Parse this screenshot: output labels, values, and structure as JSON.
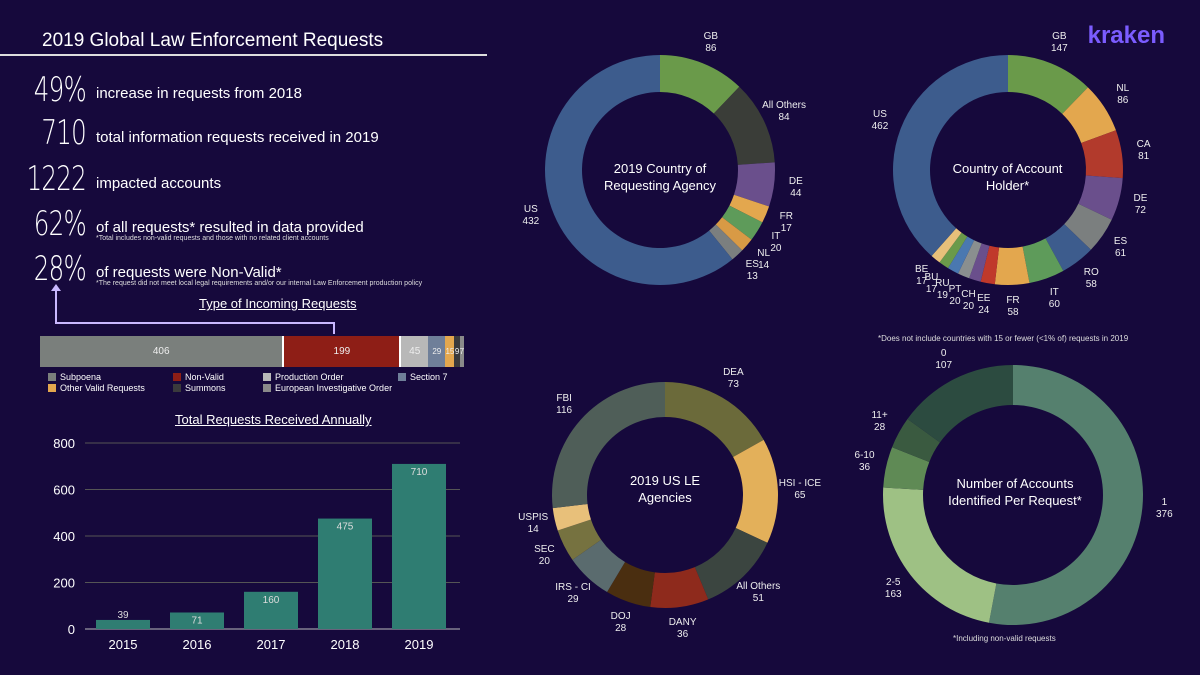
{
  "header": {
    "title": "2019 Global Law Enforcement Requests",
    "logo": "kraken"
  },
  "stats": [
    {
      "value": "49%",
      "text": "increase in requests from 2018"
    },
    {
      "value": "710",
      "text": "total information requests received in 2019"
    },
    {
      "value": "1222",
      "text": "impacted accounts"
    },
    {
      "value": "62%",
      "text": "of all requests* resulted in data provided",
      "note": "*Total includes non-valid requests and those with no related client accounts"
    },
    {
      "value": "28%",
      "text": "of requests were Non-Valid*",
      "note": "*The request did not meet local legal requirements and/or our internal Law Enforcement production policy"
    }
  ],
  "colors": {
    "bg": "#16093c",
    "accent": "#7b5cff"
  },
  "chart_data": [
    {
      "type": "bar",
      "orientation": "stacked-horizontal",
      "title": "Type of Incoming Requests",
      "categories": [
        "Subpoena",
        "Non-Valid",
        "Production Order",
        "Section 7",
        "Other Valid Requests",
        "Summons",
        "European Investigative Order"
      ],
      "values": [
        406,
        199,
        45,
        29,
        15,
        9,
        7
      ],
      "colors": [
        "#7a7f7c",
        "#8e1e16",
        "#b8b8b8",
        "#6f7f99",
        "#e3a74e",
        "#3a3a3c",
        "#8a8a8a"
      ]
    },
    {
      "type": "bar",
      "title": "Total Requests Received Annually",
      "categories": [
        "2015",
        "2016",
        "2017",
        "2018",
        "2019"
      ],
      "values": [
        39,
        71,
        160,
        475,
        710
      ],
      "ylim": [
        0,
        800
      ],
      "yticks": [
        "0",
        "200",
        "400",
        "600",
        "800"
      ],
      "color": "#2f7d72"
    },
    {
      "type": "pie",
      "title": "2019 Country of Requesting Agency",
      "labels": [
        "GB",
        "All Others",
        "DE",
        "FR",
        "IT",
        "NL",
        "ES",
        "US"
      ],
      "values": [
        86,
        84,
        44,
        17,
        20,
        14,
        13,
        432
      ],
      "colors": [
        "#6a9a4a",
        "#3a3d38",
        "#6a4f8c",
        "#e3a74e",
        "#5e9b5a",
        "#d89a45",
        "#7b7f7f",
        "#3d5c8d"
      ]
    },
    {
      "type": "pie",
      "title": "Country of Account Holder*",
      "note": "*Does not include countries with 15 or fewer (<1% of) requests in 2019",
      "labels": [
        "GB",
        "NL",
        "CA",
        "DE",
        "ES",
        "RO",
        "IT",
        "FR",
        "EE",
        "CH",
        "PT",
        "RU",
        "BU",
        "BE",
        "US"
      ],
      "values": [
        147,
        86,
        81,
        72,
        61,
        58,
        60,
        58,
        24,
        20,
        20,
        19,
        17,
        17,
        462
      ],
      "colors": [
        "#6a9a4a",
        "#e3a74e",
        "#b23a2c",
        "#6a4f8c",
        "#7b7f7f",
        "#3d5c8d",
        "#5e9b5a",
        "#e3a74e",
        "#c0392b",
        "#6a4f8c",
        "#8a8f8f",
        "#4a78b0",
        "#6a9a4a",
        "#e8c07a",
        "#3d5c8d"
      ]
    },
    {
      "type": "pie",
      "title": "2019 US LE Agencies",
      "labels": [
        "DEA",
        "HSI - ICE",
        "All Others",
        "DANY",
        "DOJ",
        "IRS - CI",
        "SEC",
        "USPIS",
        "FBI"
      ],
      "values": [
        73,
        65,
        51,
        36,
        28,
        29,
        20,
        14,
        116
      ],
      "colors": [
        "#6b6a3a",
        "#e3b05a",
        "#3b4540",
        "#8e2a1c",
        "#4a2e10",
        "#5a6b6e",
        "#767240",
        "#e8c07a",
        "#4f5e58"
      ]
    },
    {
      "type": "pie",
      "title": "Number of Accounts Identified Per Request*",
      "note": "*Including non-valid requests",
      "labels": [
        "1",
        "2-5",
        "6-10",
        "11+",
        "0"
      ],
      "values": [
        376,
        163,
        36,
        28,
        107
      ],
      "colors": [
        "#55806e",
        "#9ec184",
        "#5f8a55",
        "#3a5a40",
        "#2c4b40"
      ]
    }
  ]
}
